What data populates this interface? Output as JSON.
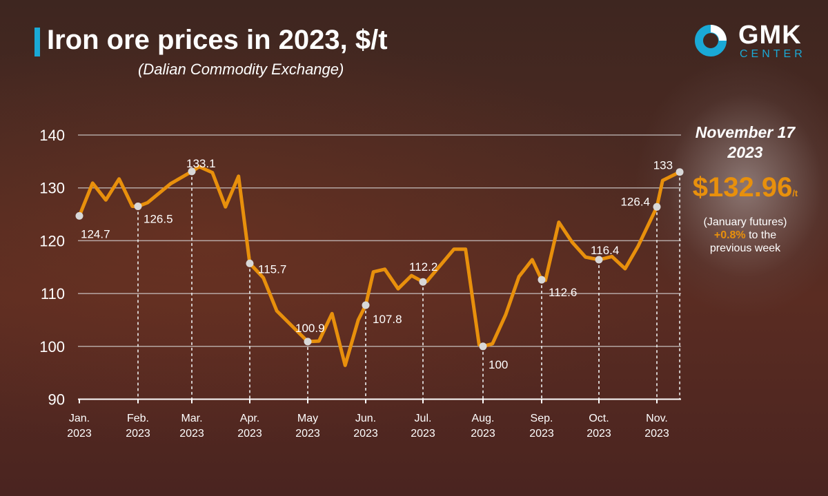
{
  "header": {
    "title": "Iron ore prices in 2023, $/t",
    "subtitle": "(Dalian Commodity Exchange)"
  },
  "logo": {
    "name": "GMK",
    "sub": "CENTER",
    "colors": {
      "ring": "#1aa9d6",
      "segment": "#ffffff"
    }
  },
  "side_panel": {
    "date_line1": "November 17",
    "date_line2": "2023",
    "price": "$132.96",
    "price_unit": "/t",
    "note_line1": "(January futures)",
    "change": "+0.8%",
    "note_line2": " to the",
    "note_line3": "previous week"
  },
  "chart_data": {
    "type": "line",
    "title": "Iron ore prices in 2023, $/t",
    "ylim": [
      90,
      140
    ],
    "yticks": [
      90,
      100,
      110,
      120,
      130,
      140
    ],
    "grid": true,
    "line_color": "#e8900c",
    "xticks": [
      {
        "date": "2023-01-01",
        "label1": "Jan.",
        "label2": "2023"
      },
      {
        "date": "2023-02-01",
        "label1": "Feb.",
        "label2": "2023"
      },
      {
        "date": "2023-03-01",
        "label1": "Mar.",
        "label2": "2023"
      },
      {
        "date": "2023-04-01",
        "label1": "Apr.",
        "label2": "2023"
      },
      {
        "date": "2023-05-01",
        "label1": "May",
        "label2": "2023"
      },
      {
        "date": "2023-06-01",
        "label1": "Jun.",
        "label2": "2023"
      },
      {
        "date": "2023-07-01",
        "label1": "Jul.",
        "label2": "2023"
      },
      {
        "date": "2023-08-01",
        "label1": "Aug.",
        "label2": "2023"
      },
      {
        "date": "2023-09-01",
        "label1": "Sep.",
        "label2": "2023"
      },
      {
        "date": "2023-10-01",
        "label1": "Oct.",
        "label2": "2023"
      },
      {
        "date": "2023-11-01",
        "label1": "Nov.",
        "label2": "2023"
      }
    ],
    "points": [
      [
        "2023-01-01",
        124.7
      ],
      [
        "2023-01-08",
        130.9
      ],
      [
        "2023-01-15",
        127.7
      ],
      [
        "2023-01-22",
        131.7
      ],
      [
        "2023-01-29",
        126.5
      ],
      [
        "2023-02-01",
        126.5
      ],
      [
        "2023-02-06",
        127.2
      ],
      [
        "2023-02-18",
        130.8
      ],
      [
        "2023-03-01",
        133.1
      ],
      [
        "2023-03-05",
        134.0
      ],
      [
        "2023-03-12",
        132.9
      ],
      [
        "2023-03-19",
        126.4
      ],
      [
        "2023-03-26",
        132.2
      ],
      [
        "2023-04-01",
        115.7
      ],
      [
        "2023-04-08",
        113.0
      ],
      [
        "2023-04-15",
        106.7
      ],
      [
        "2023-05-01",
        100.9
      ],
      [
        "2023-05-07",
        101.0
      ],
      [
        "2023-05-14",
        106.2
      ],
      [
        "2023-05-21",
        96.4
      ],
      [
        "2023-05-28",
        105.0
      ],
      [
        "2023-06-01",
        107.8
      ],
      [
        "2023-06-05",
        114.1
      ],
      [
        "2023-06-11",
        114.6
      ],
      [
        "2023-06-18",
        110.9
      ],
      [
        "2023-06-25",
        113.4
      ],
      [
        "2023-07-01",
        112.2
      ],
      [
        "2023-07-03",
        112.3
      ],
      [
        "2023-07-17",
        118.4
      ],
      [
        "2023-07-23",
        118.4
      ],
      [
        "2023-07-30",
        100.3
      ],
      [
        "2023-08-01",
        100.0
      ],
      [
        "2023-08-06",
        100.5
      ],
      [
        "2023-08-13",
        106.0
      ],
      [
        "2023-08-20",
        113.2
      ],
      [
        "2023-08-27",
        116.4
      ],
      [
        "2023-09-01",
        112.6
      ],
      [
        "2023-09-03",
        112.5
      ],
      [
        "2023-09-10",
        123.5
      ],
      [
        "2023-09-17",
        119.7
      ],
      [
        "2023-09-24",
        116.9
      ],
      [
        "2023-10-01",
        116.4
      ],
      [
        "2023-10-08",
        117.0
      ],
      [
        "2023-10-15",
        114.7
      ],
      [
        "2023-10-22",
        119.0
      ],
      [
        "2023-11-01",
        126.4
      ],
      [
        "2023-11-05",
        131.4
      ],
      [
        "2023-11-17",
        133.0
      ]
    ],
    "labeled_points": [
      {
        "date": "2023-01-01",
        "value": 124.7,
        "label": "124.7"
      },
      {
        "date": "2023-02-01",
        "value": 126.5,
        "label": "126.5"
      },
      {
        "date": "2023-03-01",
        "value": 133.1,
        "label": "133.1"
      },
      {
        "date": "2023-04-01",
        "value": 115.7,
        "label": "115.7"
      },
      {
        "date": "2023-05-01",
        "value": 100.9,
        "label": "100.9"
      },
      {
        "date": "2023-06-01",
        "value": 107.8,
        "label": "107.8"
      },
      {
        "date": "2023-07-01",
        "value": 112.2,
        "label": "112.2"
      },
      {
        "date": "2023-08-01",
        "value": 100.0,
        "label": "100"
      },
      {
        "date": "2023-09-01",
        "value": 112.6,
        "label": "112.6"
      },
      {
        "date": "2023-10-01",
        "value": 116.4,
        "label": "116.4"
      },
      {
        "date": "2023-11-01",
        "value": 126.4,
        "label": "126.4"
      },
      {
        "date": "2023-11-17",
        "value": 133.0,
        "label": "133"
      }
    ]
  }
}
